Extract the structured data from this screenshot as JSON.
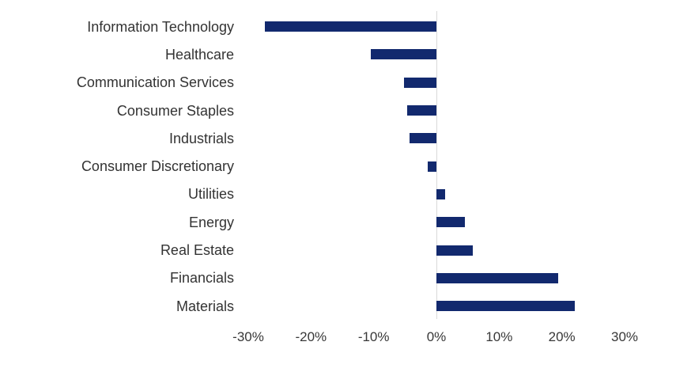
{
  "chart_data": {
    "type": "bar",
    "orientation": "horizontal",
    "title": "",
    "xlabel": "",
    "ylabel": "",
    "categories": [
      "Information Technology",
      "Healthcare",
      "Communication Services",
      "Consumer Staples",
      "Industrials",
      "Consumer Discretionary",
      "Utilities",
      "Energy",
      "Real Estate",
      "Financials",
      "Materials"
    ],
    "values": [
      -27.4,
      -10.5,
      -5.2,
      -4.7,
      -4.3,
      -1.4,
      1.4,
      4.6,
      5.8,
      19.4,
      22.1
    ],
    "value_unit": "%",
    "xlim": [
      -30,
      30
    ],
    "x_tick_labels": [
      "-30%",
      "-20%",
      "-10%",
      "0%",
      "10%",
      "20%",
      "30%"
    ],
    "grid": false,
    "legend": false,
    "zero_axis_line": true
  },
  "colors": {
    "bar": "#12296e",
    "axis_line": "#d9d9d9",
    "label_text": "#333333",
    "tick_text": "#383838",
    "background": "#ffffff"
  }
}
